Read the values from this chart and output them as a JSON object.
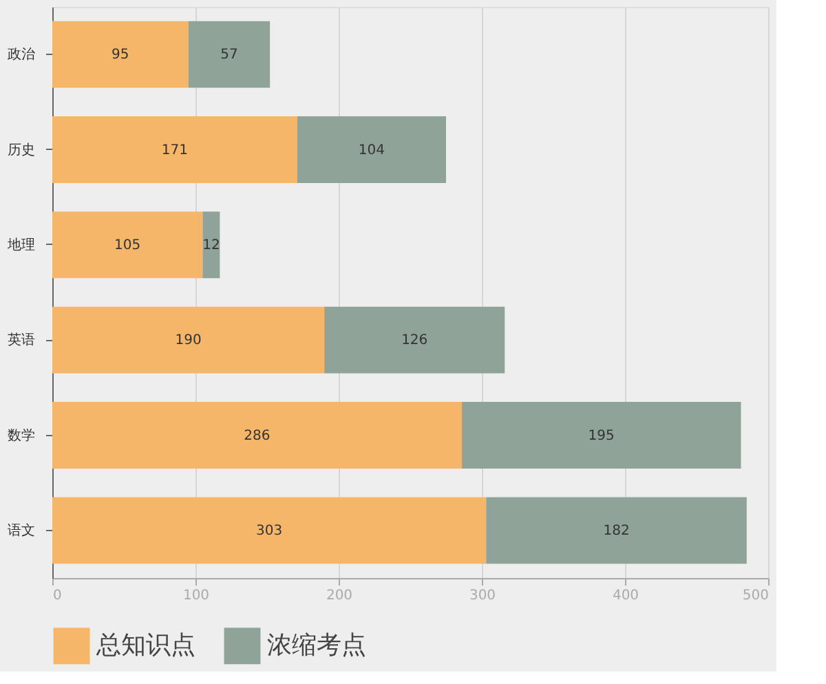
{
  "chart_data": {
    "type": "bar",
    "orientation": "horizontal",
    "stacked": true,
    "data_labels": true,
    "categories": [
      "政治",
      "历史",
      "地理",
      "英语",
      "数学",
      "语文"
    ],
    "series": [
      {
        "name": "总知识点",
        "color": "#f5b66a",
        "values": [
          95,
          171,
          105,
          190,
          286,
          303
        ]
      },
      {
        "name": "浓缩考点",
        "color": "#8fa398",
        "values": [
          57,
          104,
          12,
          126,
          195,
          182
        ]
      }
    ],
    "xlim": [
      0,
      500
    ],
    "xticks": [
      0,
      100,
      200,
      300,
      400,
      500
    ],
    "grid": "x",
    "legend": "bottom"
  }
}
